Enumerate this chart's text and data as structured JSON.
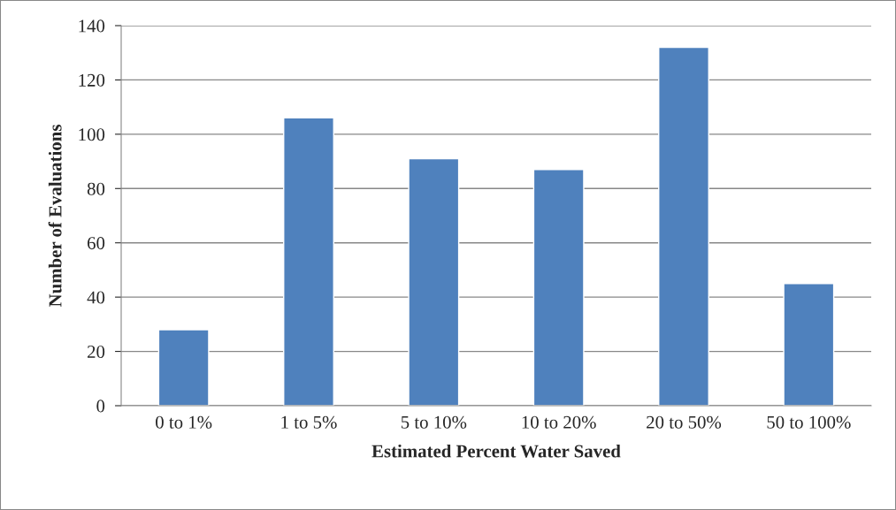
{
  "chart_data": {
    "type": "bar",
    "xlabel": "Estimated Percent Water Saved",
    "ylabel": "Number of Evaluations",
    "categories": [
      "0 to 1%",
      "1 to 5%",
      "5 to 10%",
      "10 to 20%",
      "20 to 50%",
      "50 to 100%"
    ],
    "values": [
      28,
      106,
      91,
      87,
      132,
      45
    ],
    "color": "#4f81bd",
    "ylim": [
      0,
      140
    ],
    "yticks": [
      0,
      20,
      40,
      60,
      80,
      100,
      120,
      140
    ],
    "grid": "y",
    "legend": false
  }
}
